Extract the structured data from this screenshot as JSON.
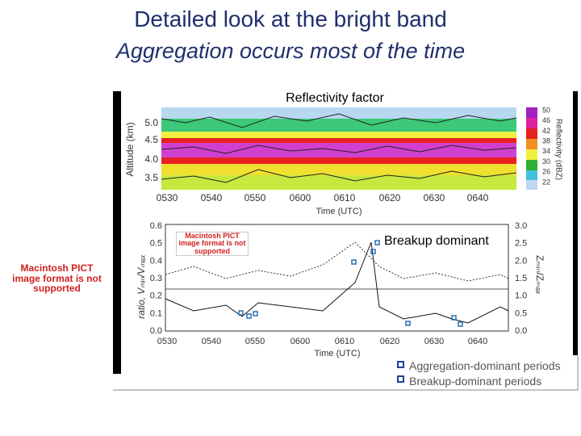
{
  "title": "Detailed look at the bright band",
  "subtitle": "Aggregation occurs most of the time",
  "top_panel": {
    "label": "Reflectivity factor",
    "y_axis_label": "Altitude (km)",
    "x_axis_label": "Time (UTC)",
    "yticks": [
      "5.0",
      "4.5",
      "4.0",
      "3.5"
    ],
    "xticks": [
      "0530",
      "0540",
      "0550",
      "0600",
      "0610",
      "0620",
      "0630",
      "0640"
    ],
    "colorbar_label": "Reflectivity (dBZ)",
    "colorbar_ticks": [
      "50",
      "46",
      "42",
      "38",
      "34",
      "30",
      "26",
      "22"
    ]
  },
  "bottom_panel": {
    "label": "Breakup dominant",
    "y_axis_label": "ratio, Vₘᵢₙ/Vₘₐₓ",
    "y2_axis_label": "Zₘᵢₙ/Zₘₐₓ",
    "x_axis_label": "Time (UTC)",
    "yticks": [
      "0.6",
      "0.5",
      "0.4",
      "0.3",
      "0.2",
      "0.1",
      "0.0"
    ],
    "y2ticks": [
      "3.0",
      "2.5",
      "2.0",
      "1.5",
      "1.0",
      "0.5",
      "0.0"
    ],
    "xticks": [
      "0530",
      "0540",
      "0550",
      "0600",
      "0610",
      "0620",
      "0630",
      "0640"
    ]
  },
  "placeholders": [
    "Macintosh PICT image format is not supported",
    "Macintosh PICT image format is not supported"
  ],
  "legend": [
    "Aggregation-dominant periods",
    "Breakup-dominant periods"
  ]
}
